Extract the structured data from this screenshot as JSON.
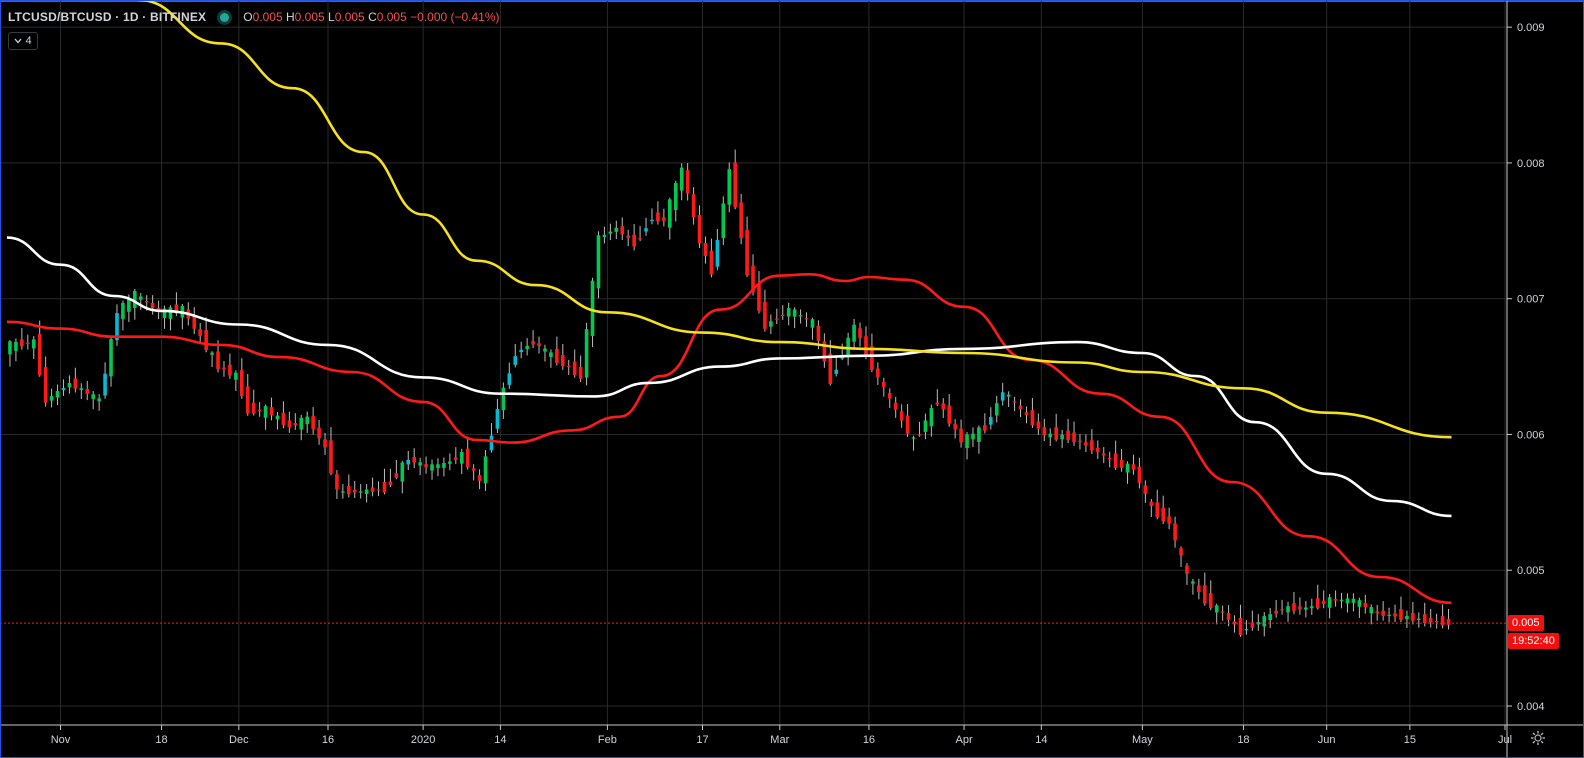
{
  "legend": {
    "symbol": "LTCUSD/BTCUSD · 1D · BITFINEX",
    "open_label": "O",
    "open": "0.005",
    "high_label": "H",
    "high": "0.005",
    "low_label": "L",
    "low": "0.005",
    "close_label": "C",
    "close": "0.005",
    "change": "−0.000 (−0.41%)"
  },
  "indicators_badge": {
    "count": "4",
    "icon": "chevron-down-icon"
  },
  "last_price": {
    "value": "0.005",
    "countdown": "19:52:40"
  },
  "colors": {
    "up": "#00c853",
    "up_alt": "#00bcd4",
    "down": "#ff1a1a",
    "ma_red": "#ff1a1a",
    "ma_white": "#ffffff",
    "ma_yellow": "#f5e11e",
    "grid": "#2a2a2a",
    "background": "#000000",
    "frame": "#1e53e5"
  },
  "chart_data": {
    "type": "line",
    "title": "LTCUSD/BTCUSD · 1D · BITFINEX",
    "xlabel": "",
    "ylabel": "",
    "ylim": [
      0.00386,
      0.0092
    ],
    "grid": true,
    "y_ticks": [
      "0.009",
      "0.008",
      "0.007",
      "0.006",
      "0.005",
      "0.004"
    ],
    "x_ticks": [
      "Nov",
      "18",
      "Dec",
      "16",
      "2020",
      "14",
      "Feb",
      "17",
      "Mar",
      "16",
      "Apr",
      "14",
      "May",
      "18",
      "Jun",
      "15",
      "Jul"
    ],
    "x_tick_dates": [
      "2019-11-01",
      "2019-11-18",
      "2019-12-01",
      "2019-12-16",
      "2020-01-01",
      "2020-01-14",
      "2020-02-01",
      "2020-02-17",
      "2020-03-01",
      "2020-03-16",
      "2020-04-01",
      "2020-04-14",
      "2020-05-01",
      "2020-05-18",
      "2020-06-01",
      "2020-06-15",
      "2020-07-01"
    ],
    "x_range": [
      "2019-10-23",
      "2020-07-01"
    ],
    "last_close": 0.00461,
    "series": [
      {
        "type": "candlestick",
        "color_up": "#00c853",
        "color_down": "#ff1a1a",
        "points": [
          {
            "d": "2019-10-23",
            "v": 0.00665
          },
          {
            "d": "2019-10-28",
            "v": 0.00668
          },
          {
            "d": "2019-10-30",
            "v": 0.00625
          },
          {
            "d": "2019-11-03",
            "v": 0.00638
          },
          {
            "d": "2019-11-08",
            "v": 0.00625
          },
          {
            "d": "2019-11-11",
            "v": 0.0069
          },
          {
            "d": "2019-11-14",
            "v": 0.00703
          },
          {
            "d": "2019-11-18",
            "v": 0.0069
          },
          {
            "d": "2019-11-22",
            "v": 0.00692
          },
          {
            "d": "2019-11-25",
            "v": 0.00672
          },
          {
            "d": "2019-11-28",
            "v": 0.0065
          },
          {
            "d": "2019-12-01",
            "v": 0.00643
          },
          {
            "d": "2019-12-03",
            "v": 0.00618
          },
          {
            "d": "2019-12-06",
            "v": 0.00618
          },
          {
            "d": "2019-12-10",
            "v": 0.00606
          },
          {
            "d": "2019-12-13",
            "v": 0.00612
          },
          {
            "d": "2019-12-16",
            "v": 0.0059
          },
          {
            "d": "2019-12-18",
            "v": 0.00558
          },
          {
            "d": "2019-12-22",
            "v": 0.00558
          },
          {
            "d": "2019-12-26",
            "v": 0.0056
          },
          {
            "d": "2019-12-30",
            "v": 0.00582
          },
          {
            "d": "2020-01-02",
            "v": 0.00576
          },
          {
            "d": "2020-01-05",
            "v": 0.00578
          },
          {
            "d": "2020-01-08",
            "v": 0.00585
          },
          {
            "d": "2020-01-11",
            "v": 0.00565
          },
          {
            "d": "2020-01-14",
            "v": 0.0062
          },
          {
            "d": "2020-01-17",
            "v": 0.0066
          },
          {
            "d": "2020-01-20",
            "v": 0.00668
          },
          {
            "d": "2020-01-24",
            "v": 0.00655
          },
          {
            "d": "2020-01-28",
            "v": 0.00643
          },
          {
            "d": "2020-01-31",
            "v": 0.00745
          },
          {
            "d": "2020-02-03",
            "v": 0.00752
          },
          {
            "d": "2020-02-06",
            "v": 0.0074
          },
          {
            "d": "2020-02-09",
            "v": 0.0076
          },
          {
            "d": "2020-02-11",
            "v": 0.00758
          },
          {
            "d": "2020-02-14",
            "v": 0.00795
          },
          {
            "d": "2020-02-17",
            "v": 0.00742
          },
          {
            "d": "2020-02-19",
            "v": 0.0072
          },
          {
            "d": "2020-02-22",
            "v": 0.00795
          },
          {
            "d": "2020-02-25",
            "v": 0.0072
          },
          {
            "d": "2020-02-28",
            "v": 0.0068
          },
          {
            "d": "2020-03-03",
            "v": 0.00692
          },
          {
            "d": "2020-03-07",
            "v": 0.00682
          },
          {
            "d": "2020-03-10",
            "v": 0.0064
          },
          {
            "d": "2020-03-14",
            "v": 0.0068
          },
          {
            "d": "2020-03-17",
            "v": 0.0065
          },
          {
            "d": "2020-03-20",
            "v": 0.00625
          },
          {
            "d": "2020-03-24",
            "v": 0.00595
          },
          {
            "d": "2020-03-28",
            "v": 0.00625
          },
          {
            "d": "2020-04-01",
            "v": 0.00595
          },
          {
            "d": "2020-04-05",
            "v": 0.00605
          },
          {
            "d": "2020-04-08",
            "v": 0.00632
          },
          {
            "d": "2020-04-11",
            "v": 0.00618
          },
          {
            "d": "2020-04-15",
            "v": 0.006
          },
          {
            "d": "2020-04-19",
            "v": 0.00598
          },
          {
            "d": "2020-04-23",
            "v": 0.0059
          },
          {
            "d": "2020-04-27",
            "v": 0.00578
          },
          {
            "d": "2020-04-30",
            "v": 0.00575
          },
          {
            "d": "2020-05-03",
            "v": 0.00545
          },
          {
            "d": "2020-05-06",
            "v": 0.00535
          },
          {
            "d": "2020-05-09",
            "v": 0.00495
          },
          {
            "d": "2020-05-12",
            "v": 0.00478
          },
          {
            "d": "2020-05-15",
            "v": 0.00468
          },
          {
            "d": "2020-05-18",
            "v": 0.00455
          },
          {
            "d": "2020-05-21",
            "v": 0.00462
          },
          {
            "d": "2020-05-25",
            "v": 0.00472
          },
          {
            "d": "2020-05-29",
            "v": 0.00472
          },
          {
            "d": "2020-06-02",
            "v": 0.00478
          },
          {
            "d": "2020-06-06",
            "v": 0.00478
          },
          {
            "d": "2020-06-10",
            "v": 0.00468
          },
          {
            "d": "2020-06-14",
            "v": 0.00466
          },
          {
            "d": "2020-06-18",
            "v": 0.00463
          },
          {
            "d": "2020-06-22",
            "v": 0.00461
          }
        ]
      },
      {
        "type": "line",
        "color": "#ff1a1a",
        "points": [
          {
            "d": "2019-10-23",
            "v": 0.00683
          },
          {
            "d": "2019-11-01",
            "v": 0.00678
          },
          {
            "d": "2019-11-10",
            "v": 0.00672
          },
          {
            "d": "2019-11-18",
            "v": 0.00672
          },
          {
            "d": "2019-11-28",
            "v": 0.00666
          },
          {
            "d": "2019-12-08",
            "v": 0.00657
          },
          {
            "d": "2019-12-20",
            "v": 0.00646
          },
          {
            "d": "2020-01-01",
            "v": 0.00624
          },
          {
            "d": "2020-01-10",
            "v": 0.00596
          },
          {
            "d": "2020-01-16",
            "v": 0.00594
          },
          {
            "d": "2020-01-26",
            "v": 0.00603
          },
          {
            "d": "2020-02-03",
            "v": 0.00613
          },
          {
            "d": "2020-02-10",
            "v": 0.00643
          },
          {
            "d": "2020-02-20",
            "v": 0.00692
          },
          {
            "d": "2020-03-01",
            "v": 0.00717
          },
          {
            "d": "2020-03-06",
            "v": 0.00718
          },
          {
            "d": "2020-03-12",
            "v": 0.00713
          },
          {
            "d": "2020-03-16",
            "v": 0.00716
          },
          {
            "d": "2020-03-22",
            "v": 0.00714
          },
          {
            "d": "2020-04-01",
            "v": 0.00694
          },
          {
            "d": "2020-04-12",
            "v": 0.00655
          },
          {
            "d": "2020-04-24",
            "v": 0.0063
          },
          {
            "d": "2020-05-04",
            "v": 0.00613
          },
          {
            "d": "2020-05-16",
            "v": 0.00565
          },
          {
            "d": "2020-05-29",
            "v": 0.00525
          },
          {
            "d": "2020-06-10",
            "v": 0.00495
          },
          {
            "d": "2020-06-22",
            "v": 0.00476
          }
        ]
      },
      {
        "type": "line",
        "color": "#ffffff",
        "points": [
          {
            "d": "2019-10-23",
            "v": 0.00745
          },
          {
            "d": "2019-11-01",
            "v": 0.00725
          },
          {
            "d": "2019-11-10",
            "v": 0.00702
          },
          {
            "d": "2019-11-18",
            "v": 0.00691
          },
          {
            "d": "2019-12-01",
            "v": 0.00681
          },
          {
            "d": "2019-12-16",
            "v": 0.00666
          },
          {
            "d": "2020-01-01",
            "v": 0.00642
          },
          {
            "d": "2020-01-14",
            "v": 0.0063
          },
          {
            "d": "2020-01-30",
            "v": 0.00628
          },
          {
            "d": "2020-02-08",
            "v": 0.00638
          },
          {
            "d": "2020-02-20",
            "v": 0.0065
          },
          {
            "d": "2020-03-01",
            "v": 0.00656
          },
          {
            "d": "2020-03-16",
            "v": 0.00658
          },
          {
            "d": "2020-04-01",
            "v": 0.00663
          },
          {
            "d": "2020-04-20",
            "v": 0.00668
          },
          {
            "d": "2020-05-01",
            "v": 0.0066
          },
          {
            "d": "2020-05-10",
            "v": 0.00643
          },
          {
            "d": "2020-05-20",
            "v": 0.00609
          },
          {
            "d": "2020-06-01",
            "v": 0.00571
          },
          {
            "d": "2020-06-12",
            "v": 0.00551
          },
          {
            "d": "2020-06-22",
            "v": 0.0054
          }
        ]
      },
      {
        "type": "line",
        "color": "#f5e11e",
        "points": [
          {
            "d": "2019-11-14",
            "v": 0.0092
          },
          {
            "d": "2019-11-28",
            "v": 0.00888
          },
          {
            "d": "2019-12-10",
            "v": 0.00855
          },
          {
            "d": "2019-12-22",
            "v": 0.00808
          },
          {
            "d": "2020-01-01",
            "v": 0.00762
          },
          {
            "d": "2020-01-10",
            "v": 0.00728
          },
          {
            "d": "2020-01-20",
            "v": 0.0071
          },
          {
            "d": "2020-02-01",
            "v": 0.0069
          },
          {
            "d": "2020-02-17",
            "v": 0.00675
          },
          {
            "d": "2020-03-01",
            "v": 0.00668
          },
          {
            "d": "2020-03-16",
            "v": 0.00663
          },
          {
            "d": "2020-04-01",
            "v": 0.0066
          },
          {
            "d": "2020-04-20",
            "v": 0.00653
          },
          {
            "d": "2020-05-01",
            "v": 0.00646
          },
          {
            "d": "2020-05-18",
            "v": 0.00634
          },
          {
            "d": "2020-06-01",
            "v": 0.00616
          },
          {
            "d": "2020-06-22",
            "v": 0.00598
          }
        ]
      }
    ]
  }
}
